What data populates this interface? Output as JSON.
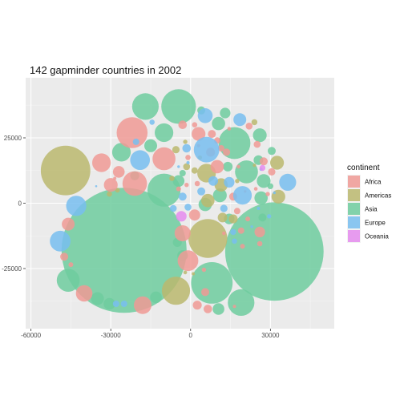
{
  "chart_data": {
    "type": "scatter",
    "variant": "packed-circles",
    "title": "142 gapminder countries in 2002",
    "xlabel": "",
    "ylabel": "",
    "xlim": [
      -62000,
      54000
    ],
    "ylim": [
      -48000,
      48000
    ],
    "x_ticks": [
      -60000,
      -30000,
      0,
      30000
    ],
    "x_tick_labels": [
      "-60000",
      "-30000",
      "0",
      "30000"
    ],
    "y_ticks": [
      -25000,
      0,
      25000
    ],
    "y_tick_labels": [
      "-25000",
      "0",
      "25000"
    ],
    "grid": true,
    "legend": {
      "title": "continent",
      "position": "right",
      "entries": [
        {
          "name": "Africa",
          "color": "#F09A95"
        },
        {
          "name": "Americas",
          "color": "#BBB86E"
        },
        {
          "name": "Asia",
          "color": "#6FCD9F"
        },
        {
          "name": "Europe",
          "color": "#78BEF0"
        },
        {
          "name": "Oceania",
          "color": "#E58CEE"
        }
      ]
    },
    "series": [
      {
        "continent": "Asia",
        "points": [
          {
            "x": -25000,
            "y": -18000,
            "r": 23500
          },
          {
            "x": 31500,
            "y": -18500,
            "r": 18500
          },
          {
            "x": -4500,
            "y": 37000,
            "r": 6500
          },
          {
            "x": 16500,
            "y": 23000,
            "r": 6000
          },
          {
            "x": -10000,
            "y": 5000,
            "r": 6200
          },
          {
            "x": 8000,
            "y": -30500,
            "r": 7800
          },
          {
            "x": -17000,
            "y": 37000,
            "r": 5000
          },
          {
            "x": 19000,
            "y": -38000,
            "r": 5000
          },
          {
            "x": -46000,
            "y": -29500,
            "r": 4300
          },
          {
            "x": 21000,
            "y": 12000,
            "r": 4300
          },
          {
            "x": -26000,
            "y": 19500,
            "r": 3500
          },
          {
            "x": -10000,
            "y": 27000,
            "r": 3500
          },
          {
            "x": 26000,
            "y": 26000,
            "r": 2600
          },
          {
            "x": 27500,
            "y": 8500,
            "r": 2600
          },
          {
            "x": 11000,
            "y": 3000,
            "r": 2600
          },
          {
            "x": 5500,
            "y": -500,
            "r": 2500
          },
          {
            "x": 10500,
            "y": 30500,
            "r": 2500
          },
          {
            "x": -15000,
            "y": 22000,
            "r": 2400
          },
          {
            "x": 26500,
            "y": 2000,
            "r": 2500
          },
          {
            "x": 10500,
            "y": -40500,
            "r": 2200
          },
          {
            "x": -35000,
            "y": -36500,
            "r": 2400
          },
          {
            "x": -30500,
            "y": -38500,
            "r": 2200
          },
          {
            "x": -13000,
            "y": -36000,
            "r": 2200
          },
          {
            "x": -4500,
            "y": 8500,
            "r": 2200
          },
          {
            "x": -3000,
            "y": -20000,
            "r": 2000
          },
          {
            "x": 14500,
            "y": -6000,
            "r": 2000
          },
          {
            "x": 13000,
            "y": 34500,
            "r": 2000
          },
          {
            "x": 14000,
            "y": 14000,
            "r": 1800
          },
          {
            "x": 25500,
            "y": 16500,
            "r": 1800
          },
          {
            "x": -21000,
            "y": 10500,
            "r": 1700
          },
          {
            "x": -5000,
            "y": -15000,
            "r": 1700
          },
          {
            "x": 30500,
            "y": 20000,
            "r": 1500
          },
          {
            "x": 27000,
            "y": -5500,
            "r": 1500
          },
          {
            "x": 4000,
            "y": 35500,
            "r": 1500
          },
          {
            "x": -3000,
            "y": 11500,
            "r": 1200
          },
          {
            "x": 30000,
            "y": 6500,
            "r": 1100
          }
        ]
      },
      {
        "continent": "Americas",
        "points": [
          {
            "x": -47000,
            "y": 12500,
            "r": 9300
          },
          {
            "x": 6500,
            "y": -13500,
            "r": 7300
          },
          {
            "x": -5500,
            "y": -33500,
            "r": 5300
          },
          {
            "x": 6000,
            "y": 11500,
            "r": 3500
          },
          {
            "x": 32500,
            "y": 15500,
            "r": 2600
          },
          {
            "x": 33000,
            "y": 2500,
            "r": 2600
          },
          {
            "x": 11500,
            "y": 7000,
            "r": 2500
          },
          {
            "x": 6500,
            "y": 1000,
            "r": 2500
          },
          {
            "x": 12000,
            "y": -5500,
            "r": 1800
          },
          {
            "x": 16000,
            "y": -6000,
            "r": 1700
          },
          {
            "x": -5500,
            "y": 20500,
            "r": 1400
          },
          {
            "x": -1500,
            "y": 14000,
            "r": 1300
          },
          {
            "x": 1500,
            "y": 12500,
            "r": 1200
          },
          {
            "x": 24000,
            "y": 31000,
            "r": 1100
          },
          {
            "x": -7000,
            "y": 9500,
            "r": 1000
          },
          {
            "x": -30500,
            "y": 3500,
            "r": 1000
          },
          {
            "x": -27500,
            "y": 5000,
            "r": 900
          },
          {
            "x": 17500,
            "y": 8500,
            "r": 800
          },
          {
            "x": -2000,
            "y": 23500,
            "r": 800
          },
          {
            "x": 3500,
            "y": 17500,
            "r": 800
          },
          {
            "x": -2000,
            "y": -26500,
            "r": 700
          },
          {
            "x": 24000,
            "y": 14500,
            "r": 600
          },
          {
            "x": 1000,
            "y": -27000,
            "r": 600
          }
        ]
      },
      {
        "continent": "Africa",
        "points": [
          {
            "x": -22000,
            "y": 27000,
            "r": 5800
          },
          {
            "x": -21000,
            "y": 7500,
            "r": 4600
          },
          {
            "x": -10000,
            "y": 17000,
            "r": 4300
          },
          {
            "x": -1000,
            "y": -22000,
            "r": 3900
          },
          {
            "x": -33500,
            "y": 15500,
            "r": 3500
          },
          {
            "x": -18000,
            "y": -39000,
            "r": 3300
          },
          {
            "x": -40000,
            "y": -34500,
            "r": 3100
          },
          {
            "x": -3000,
            "y": -11500,
            "r": 3000
          },
          {
            "x": 3000,
            "y": 26500,
            "r": 2600
          },
          {
            "x": -30000,
            "y": 7000,
            "r": 2600
          },
          {
            "x": 10000,
            "y": 14000,
            "r": 2500
          },
          {
            "x": -46000,
            "y": -8000,
            "r": 2400
          },
          {
            "x": -27000,
            "y": 12000,
            "r": 2200
          },
          {
            "x": 1500,
            "y": -4500,
            "r": 2100
          },
          {
            "x": 26000,
            "y": -11000,
            "r": 2000
          },
          {
            "x": 2500,
            "y": -39000,
            "r": 1700
          },
          {
            "x": -3000,
            "y": 30000,
            "r": 1600
          },
          {
            "x": 7500,
            "y": 19500,
            "r": 1700
          },
          {
            "x": -47500,
            "y": -20500,
            "r": 1500
          },
          {
            "x": 6500,
            "y": -40500,
            "r": 1600
          },
          {
            "x": 27500,
            "y": 16000,
            "r": 1500
          },
          {
            "x": 16000,
            "y": 2500,
            "r": 1500
          },
          {
            "x": 8000,
            "y": 26500,
            "r": 1500
          },
          {
            "x": 30500,
            "y": 12000,
            "r": 1400
          },
          {
            "x": 5500,
            "y": -34000,
            "r": 1500
          },
          {
            "x": 13500,
            "y": 19500,
            "r": 1400
          },
          {
            "x": 22000,
            "y": 29500,
            "r": 1300
          },
          {
            "x": 25000,
            "y": 22500,
            "r": 1300
          },
          {
            "x": 10000,
            "y": 24000,
            "r": 1200
          },
          {
            "x": 17500,
            "y": -3000,
            "r": 1200
          },
          {
            "x": 19000,
            "y": -10500,
            "r": 1200
          },
          {
            "x": 11500,
            "y": 21000,
            "r": 1200
          },
          {
            "x": -1000,
            "y": 17500,
            "r": 1000
          },
          {
            "x": 26000,
            "y": -15500,
            "r": 1000
          },
          {
            "x": 1500,
            "y": 30000,
            "r": 1000
          },
          {
            "x": 2500,
            "y": 7500,
            "r": 1000
          },
          {
            "x": 19500,
            "y": -16500,
            "r": 900
          },
          {
            "x": -45000,
            "y": -23500,
            "r": 900
          },
          {
            "x": 29000,
            "y": 3500,
            "r": 800
          },
          {
            "x": 21500,
            "y": -6000,
            "r": 900
          },
          {
            "x": -4500,
            "y": 5500,
            "r": 900
          },
          {
            "x": -1500,
            "y": 7000,
            "r": 800
          },
          {
            "x": 5000,
            "y": -25500,
            "r": 800
          },
          {
            "x": 14500,
            "y": 28500,
            "r": 700
          },
          {
            "x": 18000,
            "y": 14000,
            "r": 700
          },
          {
            "x": 24500,
            "y": 5500,
            "r": 700
          },
          {
            "x": 12500,
            "y": -11500,
            "r": 700
          },
          {
            "x": 3000,
            "y": 22000,
            "r": 600
          },
          {
            "x": -28500,
            "y": 9500,
            "r": 600
          },
          {
            "x": 16500,
            "y": -39500,
            "r": 600
          },
          {
            "x": 20500,
            "y": 4500,
            "r": 500
          }
        ]
      },
      {
        "continent": "Europe",
        "points": [
          {
            "x": 6000,
            "y": 20500,
            "r": 4800
          },
          {
            "x": 19500,
            "y": 3000,
            "r": 3500
          },
          {
            "x": -19000,
            "y": 16500,
            "r": 3700
          },
          {
            "x": -49000,
            "y": -14500,
            "r": 3900
          },
          {
            "x": -43000,
            "y": -1000,
            "r": 3800
          },
          {
            "x": 36500,
            "y": 8000,
            "r": 3200
          },
          {
            "x": 5500,
            "y": 33500,
            "r": 2800
          },
          {
            "x": 18500,
            "y": 32000,
            "r": 2400
          },
          {
            "x": 14500,
            "y": 8000,
            "r": 2000
          },
          {
            "x": -3000,
            "y": 2500,
            "r": 1500
          },
          {
            "x": 8500,
            "y": 8500,
            "r": 1800
          },
          {
            "x": -1500,
            "y": 21000,
            "r": 1600
          },
          {
            "x": 4000,
            "y": 4500,
            "r": 1500
          },
          {
            "x": 12500,
            "y": -2000,
            "r": 1400
          },
          {
            "x": -1000,
            "y": -1500,
            "r": 1300
          },
          {
            "x": -6500,
            "y": -2000,
            "r": 1300
          },
          {
            "x": -20500,
            "y": 23500,
            "r": 1200
          },
          {
            "x": 16000,
            "y": -11000,
            "r": 1100
          },
          {
            "x": -25000,
            "y": -38500,
            "r": 1200
          },
          {
            "x": -28000,
            "y": -38500,
            "r": 1200
          },
          {
            "x": -14500,
            "y": 31000,
            "r": 1000
          },
          {
            "x": 16500,
            "y": -14500,
            "r": 1000
          },
          {
            "x": 29500,
            "y": -5000,
            "r": 800
          },
          {
            "x": 26500,
            "y": 13000,
            "r": 600
          },
          {
            "x": 25500,
            "y": -2000,
            "r": 600
          },
          {
            "x": -1000,
            "y": 15500,
            "r": 600
          },
          {
            "x": 23000,
            "y": -9000,
            "r": 500
          },
          {
            "x": 31500,
            "y": 4000,
            "r": 500
          },
          {
            "x": -4500,
            "y": 14000,
            "r": 500
          },
          {
            "x": -35500,
            "y": 6500,
            "r": 400
          }
        ]
      },
      {
        "continent": "Oceania",
        "points": [
          {
            "x": -3500,
            "y": -5000,
            "r": 2000
          },
          {
            "x": 27000,
            "y": 13500,
            "r": 1100
          }
        ]
      }
    ]
  }
}
